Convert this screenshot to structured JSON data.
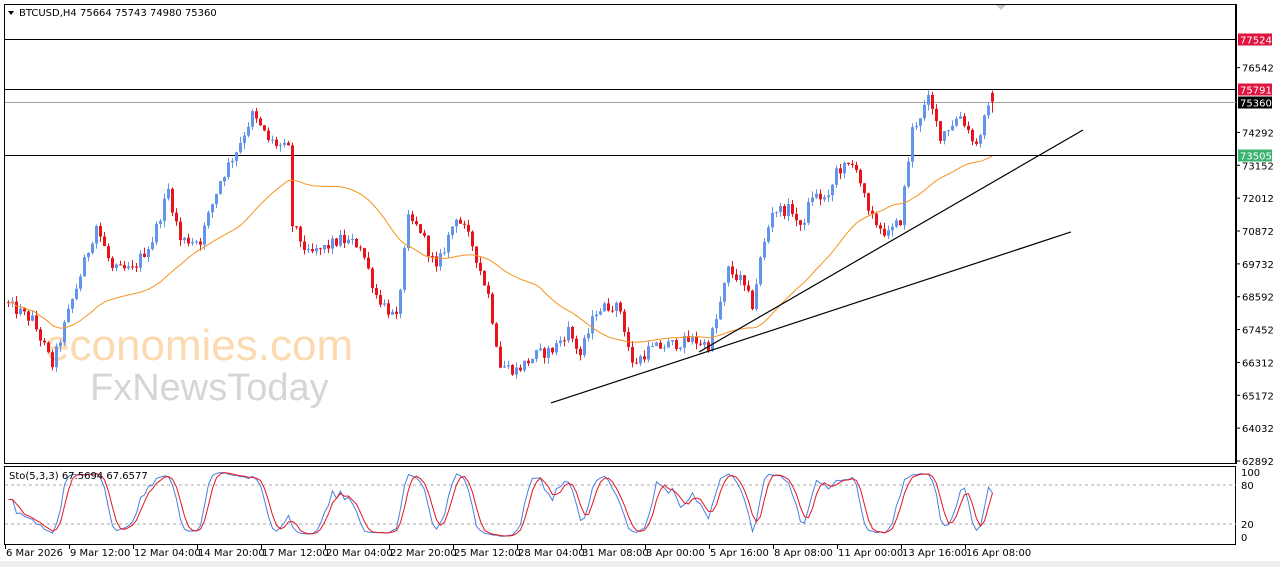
{
  "header": {
    "symbol": "BTCUSD,H4",
    "open": "75664",
    "high": "75743",
    "low": "74980",
    "close": "75360"
  },
  "indicator": {
    "label": "Sto(5,3,3) 67.5694 67.6577",
    "levels": [
      "100",
      "80",
      "20",
      "0"
    ]
  },
  "watermark": {
    "line1": "economies.com",
    "line2": "FxNewsToday"
  },
  "colors": {
    "bull": "#6495ED",
    "bear": "#E8141B",
    "ma": "#F7931E",
    "stoch_main": "#4A7FE0",
    "stoch_signal": "#E8141B"
  },
  "chart_data": {
    "type": "candlestick",
    "title": "BTCUSD,H4",
    "ylim": [
      62892,
      77682
    ],
    "price_ticks": [
      "76542",
      "74292",
      "73152",
      "72012",
      "70872",
      "69732",
      "68592",
      "67452",
      "66312",
      "65172",
      "64032",
      "62892"
    ],
    "price_tags": [
      {
        "value": "77524",
        "color": "#E0153F",
        "line": "#000000"
      },
      {
        "value": "75791",
        "color": "#E0153F",
        "line": "#000000"
      },
      {
        "value": "75360",
        "color": "#000000",
        "line": "#A0A0A0"
      },
      {
        "value": "73505",
        "color": "#3CB371",
        "line": "#000000"
      }
    ],
    "time_labels": [
      "6 Mar 2026",
      "9 Mar 12:00",
      "12 Mar 04:00",
      "14 Mar 20:00",
      "17 Mar 12:00",
      "20 Mar 04:00",
      "22 Mar 20:00",
      "25 Mar 12:00",
      "28 Mar 04:00",
      "31 Mar 08:00",
      "3 Apr 00:00",
      "5 Apr 16:00",
      "8 Apr 08:00",
      "11 Apr 00:00",
      "13 Apr 16:00",
      "16 Apr 08:00"
    ],
    "bars_per_time_label": 16,
    "last_bar": {
      "open": 75664,
      "high": 75743,
      "low": 74980,
      "close": 75360
    },
    "price_path": [
      [
        0,
        68305
      ],
      [
        6,
        67785
      ],
      [
        11,
        66223
      ],
      [
        16,
        68479
      ],
      [
        22,
        71081
      ],
      [
        26,
        69520
      ],
      [
        31,
        69520
      ],
      [
        36,
        70561
      ],
      [
        40,
        72296
      ],
      [
        43,
        70561
      ],
      [
        48,
        70561
      ],
      [
        53,
        72643
      ],
      [
        57,
        73684
      ],
      [
        61,
        74898
      ],
      [
        65,
        74031
      ],
      [
        70,
        73684
      ],
      [
        71,
        71081
      ],
      [
        75,
        70040
      ],
      [
        78,
        70214
      ],
      [
        83,
        70561
      ],
      [
        88,
        70387
      ],
      [
        92,
        68652
      ],
      [
        97,
        67785
      ],
      [
        100,
        71255
      ],
      [
        103,
        70908
      ],
      [
        107,
        69520
      ],
      [
        112,
        71428
      ],
      [
        116,
        70387
      ],
      [
        120,
        68652
      ],
      [
        123,
        66223
      ],
      [
        127,
        66050
      ],
      [
        132,
        66570
      ],
      [
        136,
        66744
      ],
      [
        140,
        67438
      ],
      [
        143,
        66570
      ],
      [
        147,
        68132
      ],
      [
        151,
        68305
      ],
      [
        153,
        68132
      ],
      [
        156,
        66223
      ],
      [
        160,
        66744
      ],
      [
        165,
        66917
      ],
      [
        171,
        67091
      ],
      [
        175,
        66917
      ],
      [
        177,
        67785
      ],
      [
        180,
        69520
      ],
      [
        183,
        69173
      ],
      [
        186,
        68305
      ],
      [
        188,
        69867
      ],
      [
        191,
        71602
      ],
      [
        196,
        71602
      ],
      [
        198,
        70908
      ],
      [
        201,
        72122
      ],
      [
        205,
        71949
      ],
      [
        207,
        72990
      ],
      [
        212,
        73163
      ],
      [
        215,
        71428
      ],
      [
        220,
        70734
      ],
      [
        223,
        71255
      ],
      [
        226,
        74378
      ],
      [
        230,
        75419
      ],
      [
        233,
        74204
      ],
      [
        238,
        74898
      ],
      [
        242,
        73857
      ],
      [
        244,
        74725
      ],
      [
        246,
        75360
      ]
    ],
    "trendlines": [
      {
        "from": [
          136,
          64905
        ],
        "to": [
          266,
          70839
        ]
      },
      {
        "from": [
          173,
          66675
        ],
        "to": [
          269,
          74378
        ]
      }
    ],
    "ma_period": 34,
    "stochastic": {
      "k": 5,
      "d": 3,
      "slowing": 3,
      "main": 67.5694,
      "signal": 67.6577
    }
  }
}
